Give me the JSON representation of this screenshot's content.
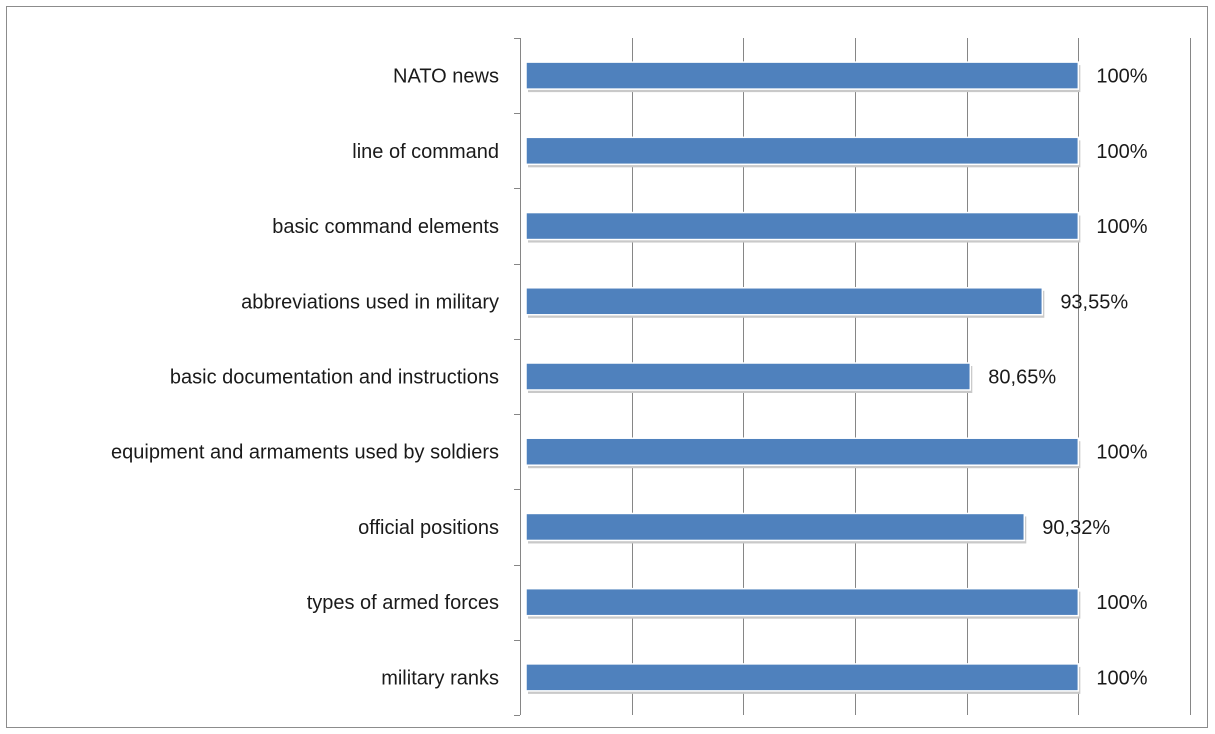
{
  "chart_data": {
    "type": "bar",
    "orientation": "horizontal",
    "categories": [
      "NATO news",
      "line of command",
      "basic command elements",
      "abbreviations used in military",
      "basic documentation and instructions",
      "equipment and armaments used by soldiers",
      "official positions",
      "types of armed forces",
      "military ranks"
    ],
    "values": [
      100,
      100,
      100,
      93.55,
      80.65,
      100,
      90.32,
      100,
      100
    ],
    "value_labels": [
      "100%",
      "100%",
      "100%",
      "93,55%",
      "80,65%",
      "100%",
      "90,32%",
      "100%",
      "100%"
    ],
    "xlim": [
      0,
      120
    ],
    "vertical_gridlines": true,
    "bar_color": "#4f81bd",
    "grid_color": "#868686"
  }
}
